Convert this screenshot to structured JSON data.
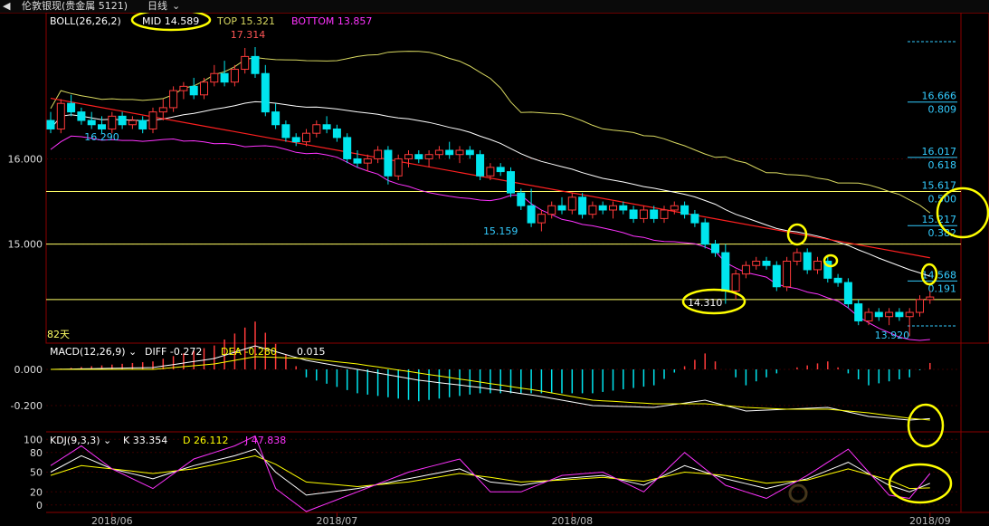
{
  "window": {
    "title": "伦敦银现(贵金属 5121)",
    "period": "日线"
  },
  "colors": {
    "up": "#ff3a3a",
    "down": "#00e5ee",
    "mid": "#ffffff",
    "upper": "#d8d860",
    "lower": "#ff33ff",
    "trend": "#ff2020",
    "fib": "#ffff66",
    "axis": "#8b0000",
    "annot": "#ffff00"
  },
  "chart_data": [
    {
      "type": "candlestick",
      "indicator": "BOLL(26,26,2)",
      "legend": {
        "name": "BOLL(26,26,2)",
        "mid_label": "MID",
        "mid": "14.589",
        "top_label": "TOP",
        "top": "15.321",
        "bottom_label": "BOTTOM",
        "bottom": "13.857"
      },
      "ylim": [
        13.85,
        17.65
      ],
      "y_ticks": [
        "16.000",
        "15.000"
      ],
      "x_ticks": [
        "2018/06",
        "2018/07",
        "2018/08",
        "2018/09"
      ],
      "period_label": "82天",
      "high_label": "17.314",
      "low_labels": [
        "16.290",
        "15.159",
        "14.310",
        "13.920"
      ],
      "ohlc": [
        [
          16.45,
          16.55,
          16.3,
          16.35
        ],
        [
          16.35,
          16.7,
          16.3,
          16.65
        ],
        [
          16.65,
          16.75,
          16.5,
          16.55
        ],
        [
          16.55,
          16.6,
          16.4,
          16.45
        ],
        [
          16.45,
          16.55,
          16.35,
          16.4
        ],
        [
          16.4,
          16.5,
          16.3,
          16.35
        ],
        [
          16.35,
          16.55,
          16.3,
          16.5
        ],
        [
          16.5,
          16.55,
          16.35,
          16.4
        ],
        [
          16.4,
          16.5,
          16.35,
          16.45
        ],
        [
          16.45,
          16.5,
          16.3,
          16.35
        ],
        [
          16.35,
          16.6,
          16.3,
          16.55
        ],
        [
          16.55,
          16.7,
          16.45,
          16.6
        ],
        [
          16.6,
          16.85,
          16.55,
          16.8
        ],
        [
          16.8,
          16.9,
          16.7,
          16.85
        ],
        [
          16.85,
          16.95,
          16.7,
          16.75
        ],
        [
          16.75,
          16.95,
          16.7,
          16.9
        ],
        [
          16.9,
          17.1,
          16.85,
          17.0
        ],
        [
          17.0,
          17.15,
          16.85,
          16.9
        ],
        [
          16.9,
          17.1,
          16.85,
          17.05
        ],
        [
          17.05,
          17.3,
          17.0,
          17.2
        ],
        [
          17.2,
          17.31,
          16.95,
          17.0
        ],
        [
          17.0,
          17.1,
          16.5,
          16.55
        ],
        [
          16.55,
          16.65,
          16.35,
          16.4
        ],
        [
          16.4,
          16.45,
          16.2,
          16.25
        ],
        [
          16.25,
          16.3,
          16.15,
          16.2
        ],
        [
          16.2,
          16.35,
          16.15,
          16.3
        ],
        [
          16.3,
          16.45,
          16.25,
          16.4
        ],
        [
          16.4,
          16.5,
          16.3,
          16.35
        ],
        [
          16.35,
          16.4,
          16.2,
          16.25
        ],
        [
          16.25,
          16.3,
          15.95,
          16.0
        ],
        [
          16.0,
          16.1,
          15.9,
          15.95
        ],
        [
          15.95,
          16.05,
          15.85,
          16.0
        ],
        [
          16.0,
          16.15,
          15.95,
          16.1
        ],
        [
          16.1,
          16.15,
          15.7,
          15.8
        ],
        [
          15.8,
          16.05,
          15.75,
          16.0
        ],
        [
          16.0,
          16.1,
          15.9,
          16.05
        ],
        [
          16.05,
          16.1,
          15.95,
          16.0
        ],
        [
          16.0,
          16.1,
          15.9,
          16.05
        ],
        [
          16.05,
          16.15,
          16.0,
          16.1
        ],
        [
          16.1,
          16.2,
          16.0,
          16.05
        ],
        [
          16.05,
          16.15,
          15.95,
          16.1
        ],
        [
          16.1,
          16.15,
          16.0,
          16.05
        ],
        [
          16.05,
          16.1,
          15.75,
          15.8
        ],
        [
          15.8,
          15.95,
          15.75,
          15.9
        ],
        [
          15.9,
          15.95,
          15.8,
          15.85
        ],
        [
          15.85,
          15.9,
          15.55,
          15.6
        ],
        [
          15.6,
          15.65,
          15.4,
          15.45
        ],
        [
          15.45,
          15.65,
          15.2,
          15.25
        ],
        [
          15.25,
          15.4,
          15.15,
          15.35
        ],
        [
          15.35,
          15.5,
          15.3,
          15.45
        ],
        [
          15.45,
          15.55,
          15.35,
          15.4
        ],
        [
          15.4,
          15.6,
          15.35,
          15.55
        ],
        [
          15.55,
          15.6,
          15.3,
          15.35
        ],
        [
          15.35,
          15.5,
          15.3,
          15.45
        ],
        [
          15.45,
          15.5,
          15.35,
          15.4
        ],
        [
          15.4,
          15.5,
          15.3,
          15.45
        ],
        [
          15.45,
          15.5,
          15.35,
          15.4
        ],
        [
          15.4,
          15.45,
          15.25,
          15.3
        ],
        [
          15.3,
          15.45,
          15.25,
          15.4
        ],
        [
          15.4,
          15.45,
          15.25,
          15.3
        ],
        [
          15.3,
          15.45,
          15.25,
          15.4
        ],
        [
          15.4,
          15.5,
          15.35,
          15.45
        ],
        [
          15.45,
          15.5,
          15.3,
          15.35
        ],
        [
          15.35,
          15.4,
          15.2,
          15.25
        ],
        [
          15.25,
          15.3,
          14.95,
          15.0
        ],
        [
          15.0,
          15.05,
          14.85,
          14.9
        ],
        [
          14.9,
          15.0,
          14.3,
          14.45
        ],
        [
          14.45,
          14.7,
          14.35,
          14.65
        ],
        [
          14.65,
          14.8,
          14.6,
          14.75
        ],
        [
          14.75,
          14.85,
          14.7,
          14.8
        ],
        [
          14.8,
          14.85,
          14.7,
          14.75
        ],
        [
          14.75,
          14.8,
          14.45,
          14.5
        ],
        [
          14.5,
          14.85,
          14.45,
          14.8
        ],
        [
          14.8,
          14.95,
          14.75,
          14.9
        ],
        [
          14.9,
          14.95,
          14.65,
          14.7
        ],
        [
          14.7,
          14.85,
          14.65,
          14.8
        ],
        [
          14.8,
          14.85,
          14.55,
          14.6
        ],
        [
          14.6,
          14.65,
          14.5,
          14.55
        ],
        [
          14.55,
          14.6,
          14.25,
          14.3
        ],
        [
          14.3,
          14.35,
          14.05,
          14.1
        ],
        [
          14.1,
          14.25,
          14.05,
          14.2
        ],
        [
          14.2,
          14.25,
          14.1,
          14.15
        ],
        [
          14.15,
          14.25,
          14.05,
          14.2
        ],
        [
          14.2,
          14.25,
          14.1,
          14.15
        ],
        [
          14.15,
          14.25,
          13.92,
          14.2
        ],
        [
          14.2,
          14.4,
          14.15,
          14.35
        ],
        [
          14.35,
          14.45,
          14.3,
          14.38
        ]
      ],
      "fibonacci": [
        {
          "price": 16.666,
          "ratio": "0.809"
        },
        {
          "price": 16.017,
          "ratio": "0.618"
        },
        {
          "price": 15.617,
          "ratio": "0.500"
        },
        {
          "price": 15.217,
          "ratio": "0.382"
        },
        {
          "price": 14.568,
          "ratio": "0.191"
        }
      ],
      "fib_price_labels": [
        "16.666",
        "16.017",
        "15.617",
        "15.217",
        "14.568"
      ],
      "horizontal_lines": [
        15.617,
        15.0,
        14.35
      ],
      "trendline": [
        [
          0,
          16.71
        ],
        [
          86,
          14.84
        ]
      ]
    },
    {
      "type": "bar+line",
      "indicator": "MACD(12,26,9)",
      "legend": {
        "name": "MACD(12,26,9)",
        "diff_label": "DIFF",
        "diff": "-0.272",
        "dea_label": "DEA",
        "dea": "-0.280",
        "macd": "0.015"
      },
      "ylim": [
        -0.34,
        0.14
      ],
      "y_ticks": [
        "0.000",
        "-0.200"
      ],
      "diff_key": [
        [
          0,
          0.0
        ],
        [
          10,
          0.01
        ],
        [
          16,
          0.06
        ],
        [
          20,
          0.13
        ],
        [
          25,
          0.05
        ],
        [
          30,
          0.0
        ],
        [
          36,
          -0.06
        ],
        [
          42,
          -0.1
        ],
        [
          48,
          -0.15
        ],
        [
          53,
          -0.2
        ],
        [
          59,
          -0.21
        ],
        [
          64,
          -0.17
        ],
        [
          68,
          -0.23
        ],
        [
          72,
          -0.22
        ],
        [
          76,
          -0.21
        ],
        [
          80,
          -0.26
        ],
        [
          84,
          -0.28
        ],
        [
          86,
          -0.272
        ]
      ],
      "dea_key": [
        [
          0,
          0.0
        ],
        [
          10,
          0.0
        ],
        [
          16,
          0.03
        ],
        [
          20,
          0.07
        ],
        [
          25,
          0.06
        ],
        [
          30,
          0.03
        ],
        [
          36,
          -0.02
        ],
        [
          42,
          -0.07
        ],
        [
          48,
          -0.12
        ],
        [
          53,
          -0.17
        ],
        [
          59,
          -0.19
        ],
        [
          64,
          -0.19
        ],
        [
          68,
          -0.21
        ],
        [
          72,
          -0.22
        ],
        [
          76,
          -0.22
        ],
        [
          80,
          -0.24
        ],
        [
          84,
          -0.27
        ],
        [
          86,
          -0.28
        ]
      ]
    },
    {
      "type": "line",
      "indicator": "KDJ(9,3,3)",
      "legend": {
        "name": "KDJ(9,3,3)",
        "k_label": "K",
        "k": "33.354",
        "d_label": "D",
        "d": "26.112",
        "j_label": "J",
        "j": "47.838"
      },
      "ylim": [
        -10,
        110
      ],
      "y_ticks": [
        "100",
        "80",
        "50",
        "20",
        "0"
      ],
      "k_key": [
        [
          0,
          50
        ],
        [
          3,
          75
        ],
        [
          6,
          55
        ],
        [
          10,
          40
        ],
        [
          14,
          60
        ],
        [
          18,
          75
        ],
        [
          20,
          85
        ],
        [
          22,
          50
        ],
        [
          25,
          15
        ],
        [
          30,
          25
        ],
        [
          35,
          40
        ],
        [
          40,
          55
        ],
        [
          43,
          35
        ],
        [
          46,
          30
        ],
        [
          50,
          40
        ],
        [
          54,
          45
        ],
        [
          58,
          30
        ],
        [
          62,
          60
        ],
        [
          66,
          40
        ],
        [
          70,
          25
        ],
        [
          74,
          40
        ],
        [
          78,
          65
        ],
        [
          82,
          30
        ],
        [
          84,
          20
        ],
        [
          86,
          33
        ]
      ],
      "d_key": [
        [
          0,
          45
        ],
        [
          3,
          60
        ],
        [
          6,
          55
        ],
        [
          10,
          48
        ],
        [
          14,
          55
        ],
        [
          18,
          68
        ],
        [
          20,
          75
        ],
        [
          22,
          62
        ],
        [
          25,
          35
        ],
        [
          30,
          28
        ],
        [
          35,
          35
        ],
        [
          40,
          48
        ],
        [
          43,
          42
        ],
        [
          46,
          35
        ],
        [
          50,
          38
        ],
        [
          54,
          42
        ],
        [
          58,
          36
        ],
        [
          62,
          50
        ],
        [
          66,
          45
        ],
        [
          70,
          33
        ],
        [
          74,
          38
        ],
        [
          78,
          55
        ],
        [
          82,
          38
        ],
        [
          84,
          25
        ],
        [
          86,
          26
        ]
      ],
      "j_key": [
        [
          0,
          60
        ],
        [
          3,
          90
        ],
        [
          6,
          55
        ],
        [
          10,
          25
        ],
        [
          14,
          70
        ],
        [
          18,
          90
        ],
        [
          20,
          105
        ],
        [
          22,
          25
        ],
        [
          25,
          -10
        ],
        [
          30,
          20
        ],
        [
          35,
          50
        ],
        [
          40,
          70
        ],
        [
          43,
          20
        ],
        [
          46,
          20
        ],
        [
          50,
          45
        ],
        [
          54,
          50
        ],
        [
          58,
          20
        ],
        [
          62,
          80
        ],
        [
          66,
          30
        ],
        [
          70,
          10
        ],
        [
          74,
          45
        ],
        [
          78,
          85
        ],
        [
          82,
          15
        ],
        [
          84,
          10
        ],
        [
          86,
          48
        ]
      ]
    }
  ]
}
